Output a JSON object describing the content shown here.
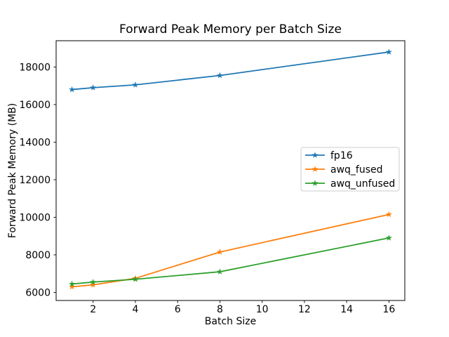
{
  "chart_data": {
    "type": "line",
    "title": "Forward Peak Memory per Batch Size",
    "xlabel": "Batch Size",
    "ylabel": "Forward Peak Memory (MB)",
    "x": [
      1,
      2,
      4,
      8,
      16
    ],
    "series": [
      {
        "name": "fp16",
        "color": "#1f77b4",
        "values": [
          16800,
          16900,
          17050,
          17550,
          18800
        ]
      },
      {
        "name": "awq_fused",
        "color": "#ff7f0e",
        "values": [
          6300,
          6400,
          6750,
          8150,
          10150
        ]
      },
      {
        "name": "awq_unfused",
        "color": "#2ca02c",
        "values": [
          6450,
          6550,
          6700,
          7100,
          8900
        ]
      }
    ],
    "x_ticks": [
      2,
      4,
      6,
      8,
      10,
      12,
      14,
      16
    ],
    "y_ticks": [
      6000,
      8000,
      10000,
      12000,
      14000,
      16000,
      18000
    ],
    "xlim": [
      0.25,
      16.75
    ],
    "ylim": [
      5570,
      19400
    ],
    "grid": false,
    "marker": "star",
    "legend_position": "center right",
    "legend_border_color": "#cccccc",
    "axis_color": "#000000",
    "background": "#ffffff"
  }
}
